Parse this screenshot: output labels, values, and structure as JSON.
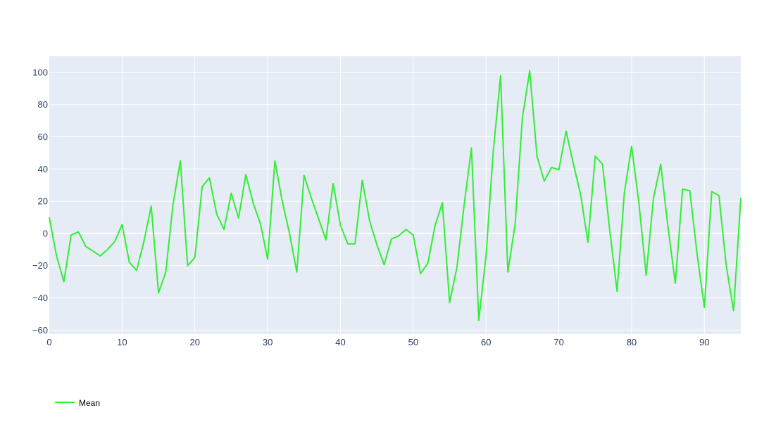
{
  "chart_data": {
    "type": "line",
    "title": "",
    "xlabel": "",
    "ylabel": "",
    "xlim": [
      0,
      95
    ],
    "ylim": [
      -62.5,
      110
    ],
    "grid": true,
    "legend_position": "bottom-left",
    "x_ticks": [
      "0",
      "10",
      "20",
      "30",
      "40",
      "50",
      "60",
      "70",
      "80",
      "90"
    ],
    "x_tick_values": [
      0,
      10,
      20,
      30,
      40,
      50,
      60,
      70,
      80,
      90
    ],
    "y_ticks": [
      "−60",
      "−40",
      "−20",
      "0",
      "20",
      "40",
      "60",
      "80",
      "100"
    ],
    "y_tick_values": [
      -60,
      -40,
      -20,
      0,
      20,
      40,
      60,
      80,
      100
    ],
    "background_color": "#e5ecf6",
    "series": [
      {
        "name": "Mean",
        "color": "#33ee33",
        "x": [
          0,
          1,
          2,
          3,
          4,
          5,
          6,
          7,
          8,
          9,
          10,
          11,
          12,
          13,
          14,
          15,
          16,
          17,
          18,
          19,
          20,
          21,
          22,
          23,
          24,
          25,
          26,
          27,
          28,
          29,
          30,
          31,
          32,
          33,
          34,
          35,
          36,
          37,
          38,
          39,
          40,
          41,
          42,
          43,
          44,
          45,
          46,
          47,
          48,
          49,
          50,
          51,
          52,
          53,
          54,
          55,
          56,
          57,
          58,
          59,
          60,
          61,
          62,
          63,
          64,
          65,
          66,
          67,
          68,
          69,
          70,
          71,
          72,
          73,
          74,
          75,
          76,
          77,
          78,
          79,
          80,
          81,
          82,
          83,
          84,
          85,
          86,
          87,
          88,
          89,
          90,
          91,
          92,
          93,
          94,
          95
        ],
        "y": [
          10,
          -14,
          -30,
          -1,
          1,
          -8,
          -11,
          -14,
          -10,
          -5,
          5.5,
          -18,
          -23,
          -5,
          17,
          -37,
          -24,
          18,
          45,
          -20,
          -15,
          29,
          34.5,
          12,
          2.5,
          25,
          9.5,
          36.5,
          19,
          6,
          -16,
          45,
          20,
          0,
          -24,
          36,
          22,
          9,
          -4,
          31,
          5,
          -6.5,
          -6.5,
          33,
          8,
          -7,
          -19.5,
          -3.5,
          -1.5,
          2.5,
          -1,
          -25,
          -18.5,
          5,
          19,
          -43,
          -21,
          18,
          53,
          -54,
          -14,
          51,
          98,
          -24,
          6,
          72,
          101,
          48,
          32.5,
          41,
          39.5,
          63.5,
          43,
          24,
          -5.5,
          48,
          43,
          2,
          -36,
          25,
          54,
          19,
          -26,
          22,
          43,
          4,
          -31,
          27.5,
          26.5,
          -13,
          -46,
          26,
          23.5,
          -20,
          -48,
          22
        ]
      }
    ]
  }
}
